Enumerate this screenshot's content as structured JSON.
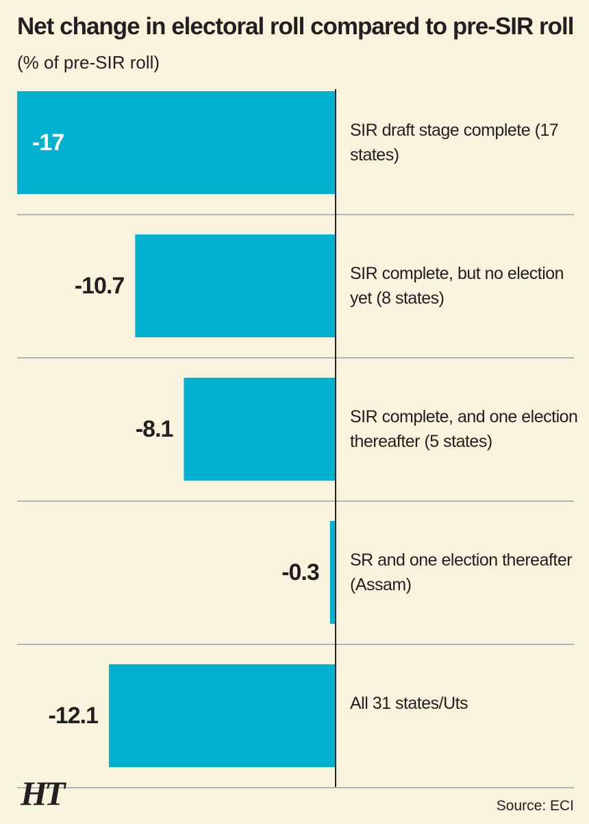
{
  "chart_data": {
    "type": "bar",
    "orientation": "horizontal",
    "title": "Net change in electoral roll compared to pre-SIR roll",
    "subtitle": "(% of pre-SIR roll)",
    "categories": [
      "SIR draft stage complete (17 states)",
      "SIR complete, but no election yet (8 states)",
      "SIR complete, and one election thereafter (5 states)",
      "SR and one election thereafter (Assam)",
      "All 31 states/Uts"
    ],
    "values": [
      -17,
      -10.7,
      -8.1,
      -0.3,
      -12.1
    ],
    "color": "#00b2cf",
    "source": "Source: ECI",
    "logo": "HT"
  }
}
